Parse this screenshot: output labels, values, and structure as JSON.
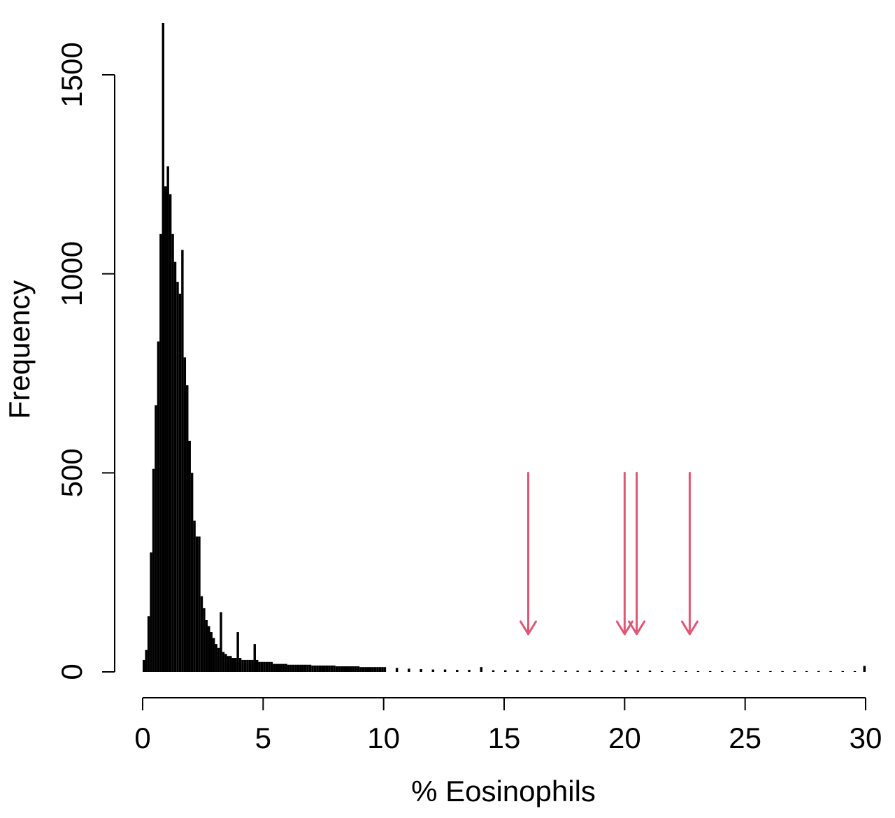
{
  "chart_data": {
    "type": "bar",
    "title": "",
    "xlabel": "% Eosinophils",
    "ylabel": "Frequency",
    "xlim": [
      0,
      30
    ],
    "ylim": [
      0,
      1630
    ],
    "grid": false,
    "legend": "none",
    "x_ticks": [
      0,
      5,
      10,
      15,
      20,
      25,
      30
    ],
    "x_tick_labels": [
      "0",
      "5",
      "10",
      "15",
      "20",
      "25",
      "30"
    ],
    "y_ticks": [
      0,
      500,
      1000,
      1500
    ],
    "y_tick_labels": [
      "0",
      "500",
      "1000",
      "1500"
    ],
    "bar_color": "#000000",
    "arrow_color": "#de5774",
    "bin_width": 0.1,
    "x": [
      0.0,
      0.1,
      0.2,
      0.3,
      0.4,
      0.5,
      0.6,
      0.7,
      0.8,
      0.9,
      1.0,
      1.1,
      1.2,
      1.3,
      1.4,
      1.5,
      1.6,
      1.7,
      1.8,
      1.9,
      2.0,
      2.1,
      2.2,
      2.3,
      2.4,
      2.5,
      2.6,
      2.7,
      2.8,
      2.9,
      3.0,
      3.1,
      3.2,
      3.3,
      3.4,
      3.5,
      3.6,
      3.7,
      3.8,
      3.9,
      4.0,
      4.1,
      4.2,
      4.3,
      4.4,
      4.5,
      4.6,
      4.7,
      4.8,
      4.9,
      5.0,
      5.1,
      5.2,
      5.3,
      5.4,
      5.5,
      5.6,
      5.7,
      5.8,
      5.9,
      6.0,
      6.1,
      6.2,
      6.3,
      6.4,
      6.5,
      6.6,
      6.7,
      6.8,
      6.9,
      7.0,
      7.1,
      7.2,
      7.3,
      7.4,
      7.5,
      7.6,
      7.7,
      7.8,
      7.9,
      8.0,
      8.1,
      8.2,
      8.3,
      8.4,
      8.5,
      8.6,
      8.7,
      8.8,
      8.9,
      9.0,
      9.1,
      9.2,
      9.3,
      9.4,
      9.5,
      9.6,
      9.7,
      9.8,
      9.9,
      10.0,
      10.5,
      11.0,
      11.5,
      12.0,
      12.5,
      13.0,
      13.5,
      14.0,
      14.5,
      15.0,
      15.5,
      16.0,
      16.5,
      17.0,
      17.5,
      18.0,
      18.5,
      19.0,
      19.5,
      20.0,
      20.5,
      21.0,
      21.5,
      22.0,
      22.5,
      23.0,
      23.5,
      24.0,
      24.5,
      25.0,
      25.5,
      26.0,
      26.5,
      27.0,
      27.5,
      28.0,
      28.5,
      29.0,
      29.5,
      29.9
    ],
    "values": [
      30,
      55,
      140,
      300,
      510,
      670,
      830,
      1100,
      1630,
      1220,
      1270,
      1200,
      1100,
      1030,
      980,
      950,
      1060,
      790,
      720,
      580,
      500,
      380,
      340,
      340,
      190,
      160,
      130,
      115,
      100,
      85,
      70,
      60,
      150,
      50,
      45,
      40,
      40,
      35,
      35,
      100,
      35,
      30,
      30,
      30,
      30,
      30,
      70,
      30,
      25,
      25,
      25,
      25,
      25,
      25,
      20,
      20,
      20,
      20,
      20,
      20,
      18,
      18,
      18,
      18,
      18,
      18,
      18,
      18,
      18,
      18,
      16,
      16,
      16,
      16,
      16,
      16,
      16,
      16,
      16,
      16,
      14,
      14,
      14,
      14,
      14,
      14,
      14,
      14,
      14,
      14,
      12,
      12,
      12,
      12,
      12,
      12,
      12,
      12,
      12,
      12,
      12,
      10,
      8,
      7,
      6,
      6,
      5,
      5,
      12,
      4,
      4,
      4,
      4,
      3,
      3,
      3,
      3,
      3,
      3,
      3,
      4,
      3,
      3,
      2,
      2,
      2,
      2,
      2,
      2,
      2,
      2,
      2,
      2,
      2,
      2,
      2,
      2,
      2,
      2,
      2,
      15
    ],
    "annotations": {
      "arrows_x": [
        16.0,
        20.0,
        20.5,
        22.7
      ],
      "arrow_top": 500,
      "arrow_tip": 95
    }
  }
}
